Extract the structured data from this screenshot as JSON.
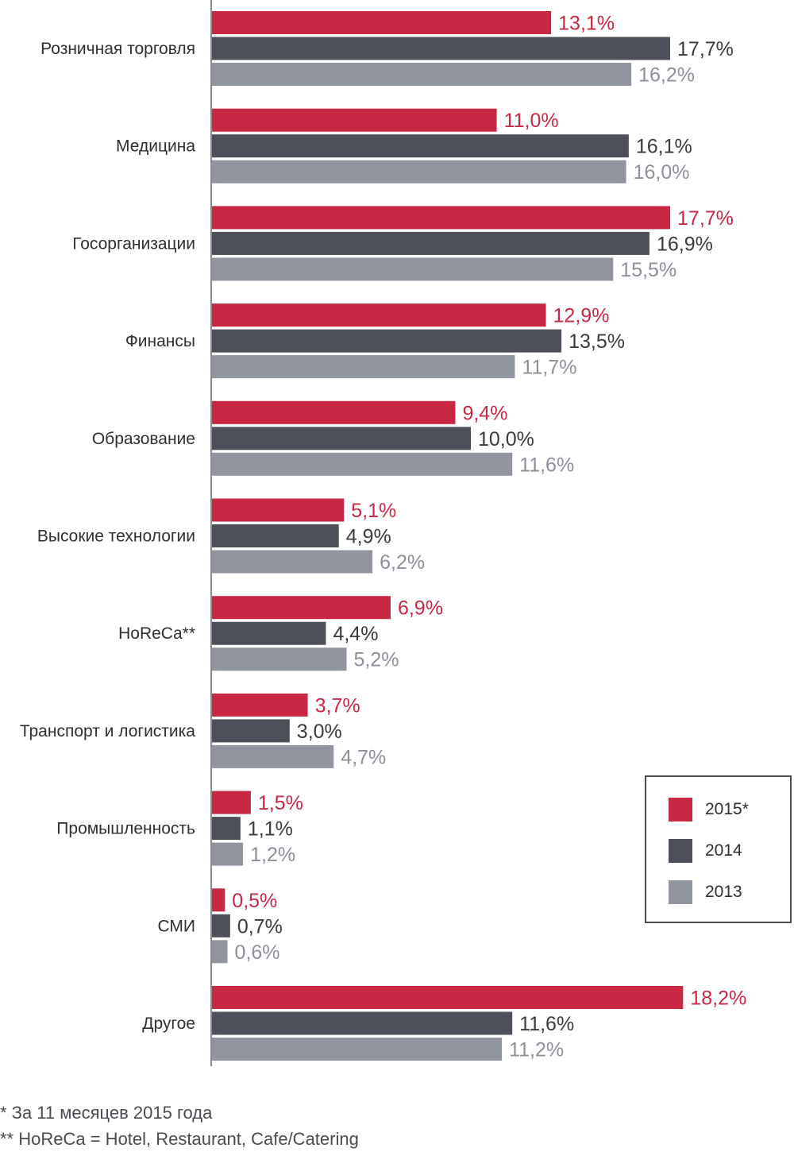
{
  "chart_data": {
    "type": "bar",
    "orientation": "horizontal",
    "title": "",
    "xlabel": "",
    "ylabel": "",
    "xlim": [
      0,
      19
    ],
    "grid": false,
    "legend_position": "bottom-right",
    "categories": [
      "Розничная торговля",
      "Медицина",
      "Госорганизации",
      "Финансы",
      "Образование",
      "Высокие технологии",
      "HoReCa**",
      "Транспорт и логистика",
      "Промышленность",
      "СМИ",
      "Другое"
    ],
    "series": [
      {
        "name": "2015*",
        "color": "#c82843",
        "values": [
          13.1,
          11.0,
          17.7,
          12.9,
          9.4,
          5.1,
          6.9,
          3.7,
          1.5,
          0.5,
          18.2
        ],
        "labels": [
          "13,1%",
          "11,0%",
          "17,7%",
          "12,9%",
          "9,4%",
          "5,1%",
          "6,9%",
          "3,7%",
          "1,5%",
          "0,5%",
          "18,2%"
        ],
        "label_color": "#c82843"
      },
      {
        "name": "2014",
        "color": "#4d5058",
        "values": [
          17.7,
          16.1,
          16.9,
          13.5,
          10.0,
          4.9,
          4.4,
          3.0,
          1.1,
          0.7,
          11.6
        ],
        "labels": [
          "17,7%",
          "16,1%",
          "16,9%",
          "13,5%",
          "10,0%",
          "4,9%",
          "4,4%",
          "3,0%",
          "1,1%",
          "0,7%",
          "11,6%"
        ],
        "label_color": "#3a3b40"
      },
      {
        "name": "2013",
        "color": "#9095a0",
        "values": [
          16.2,
          16.0,
          15.5,
          11.7,
          11.6,
          6.2,
          5.2,
          4.7,
          1.2,
          0.6,
          11.2
        ],
        "labels": [
          "16,2%",
          "16,0%",
          "15,5%",
          "11,7%",
          "11,6%",
          "6,2%",
          "5,2%",
          "4,7%",
          "1,2%",
          "0,6%",
          "11,2%"
        ],
        "label_color": "#8c909a"
      }
    ],
    "footnotes": [
      "* За 11 месяцев 2015 года",
      "** HoReCa = Hotel, Restaurant, Cafe/Catering"
    ]
  },
  "legend": {
    "items": [
      {
        "label": "2015*",
        "color": "#c82843"
      },
      {
        "label": "2014",
        "color": "#4d5058"
      },
      {
        "label": "2013",
        "color": "#9095a0"
      }
    ]
  },
  "axis_color": "#8a8a8f"
}
